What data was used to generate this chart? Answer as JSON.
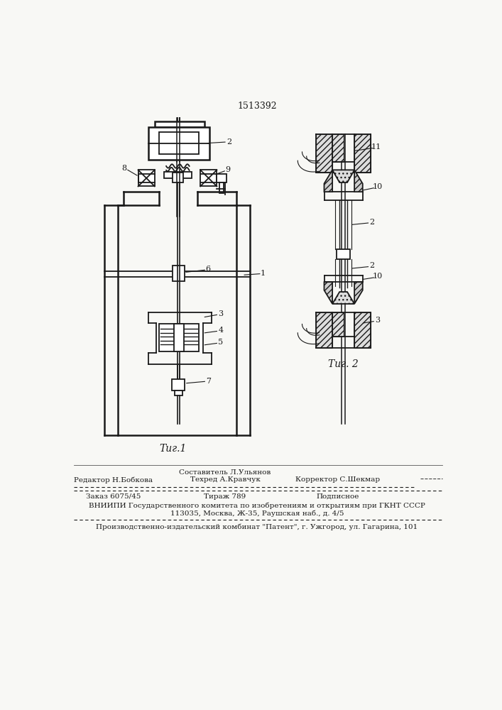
{
  "patent_number": "1513392",
  "fig1_caption": "Τиг.1",
  "fig2_caption": "Τиг. 2",
  "bg_color": "#f8f8f5",
  "line_color": "#1a1a1a"
}
